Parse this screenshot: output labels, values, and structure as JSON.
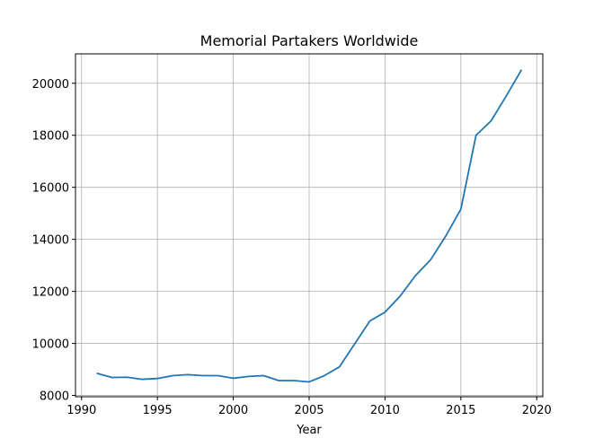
{
  "chart_data": {
    "type": "line",
    "title": "Memorial Partakers Worldwide",
    "xlabel": "Year",
    "ylabel": "",
    "xlim": [
      1989.6,
      2020.4
    ],
    "ylim": [
      7950,
      21130
    ],
    "xticks": [
      1990,
      1995,
      2000,
      2005,
      2010,
      2015,
      2020
    ],
    "yticks": [
      8000,
      10000,
      12000,
      14000,
      16000,
      18000,
      20000
    ],
    "grid": true,
    "line_color": "#1f77b4",
    "series": [
      {
        "x": [
          1991,
          1992,
          1993,
          1994,
          1995,
          1996,
          1997,
          1998,
          1999,
          2000,
          2001,
          2002,
          2003,
          2004,
          2005,
          2006,
          2007,
          2008,
          2009,
          2010,
          2011,
          2012,
          2013,
          2014,
          2015,
          2016,
          2017,
          2018,
          2019
        ],
        "values": [
          8850,
          8690,
          8700,
          8620,
          8650,
          8760,
          8800,
          8760,
          8760,
          8660,
          8730,
          8760,
          8570,
          8570,
          8520,
          8760,
          9100,
          9980,
          10860,
          11200,
          11820,
          12600,
          13210,
          14120,
          15160,
          18000,
          18560,
          19520,
          20520
        ]
      }
    ]
  }
}
